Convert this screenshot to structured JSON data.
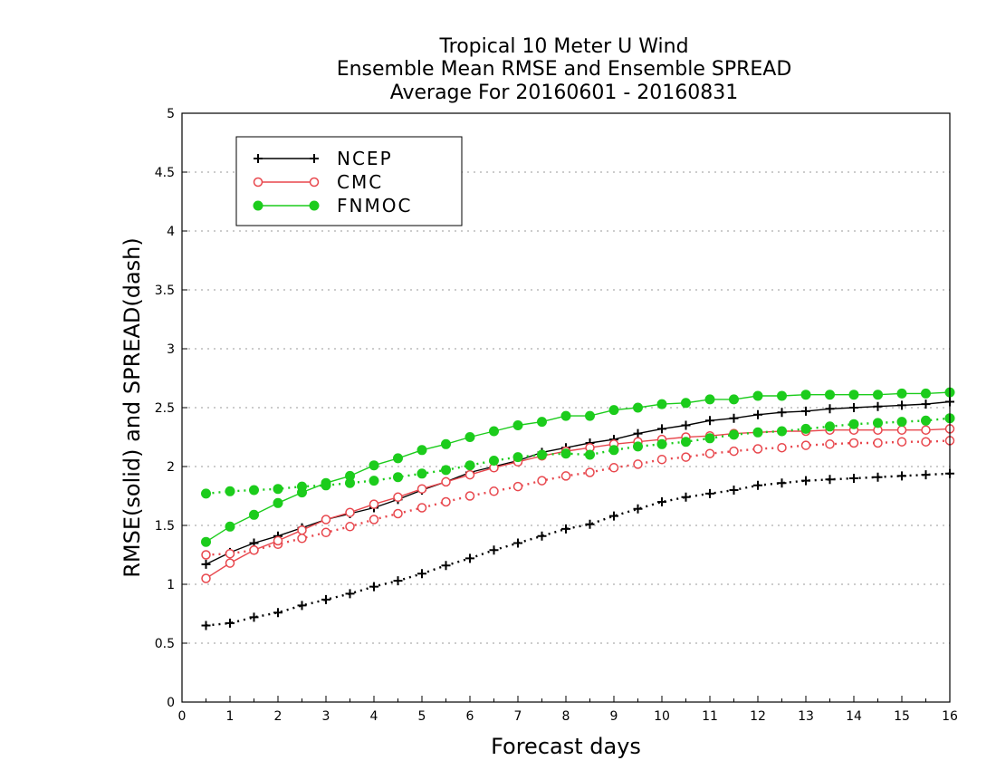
{
  "chart_data": {
    "type": "line",
    "title": [
      "Tropical 10 Meter U Wind",
      "Ensemble Mean RMSE and Ensemble SPREAD",
      "Average For 20160601 - 20160831"
    ],
    "xlabel": "Forecast days",
    "ylabel": "RMSE(solid) and SPREAD(dash)",
    "xlim": [
      0,
      16
    ],
    "ylim": [
      0,
      5
    ],
    "x_ticks": [
      "0",
      "1",
      "2",
      "3",
      "4",
      "5",
      "6",
      "7",
      "8",
      "9",
      "10",
      "11",
      "12",
      "13",
      "14",
      "15",
      "16"
    ],
    "y_ticks": [
      "0",
      "0.5",
      "1",
      "1.5",
      "2",
      "2.5",
      "3",
      "3.5",
      "4",
      "4.5",
      "5"
    ],
    "grid": "horizontal dotted",
    "legend_position": "top-left",
    "x": [
      0.5,
      1,
      1.5,
      2,
      2.5,
      3,
      3.5,
      4,
      4.5,
      5,
      5.5,
      6,
      6.5,
      7,
      7.5,
      8,
      8.5,
      9,
      9.5,
      10,
      10.5,
      11,
      11.5,
      12,
      12.5,
      13,
      13.5,
      14,
      14.5,
      15,
      15.5,
      16
    ],
    "series": [
      {
        "name": "NCEP",
        "color": "#000000",
        "marker": "plus",
        "rmse": [
          1.17,
          1.27,
          1.35,
          1.41,
          1.48,
          1.55,
          1.6,
          1.65,
          1.72,
          1.8,
          1.87,
          1.95,
          2.0,
          2.05,
          2.12,
          2.16,
          2.2,
          2.23,
          2.28,
          2.32,
          2.35,
          2.39,
          2.41,
          2.44,
          2.46,
          2.47,
          2.49,
          2.5,
          2.51,
          2.52,
          2.53,
          2.55
        ],
        "spread": [
          0.65,
          0.67,
          0.72,
          0.76,
          0.82,
          0.87,
          0.92,
          0.98,
          1.03,
          1.09,
          1.16,
          1.22,
          1.29,
          1.35,
          1.41,
          1.47,
          1.51,
          1.58,
          1.64,
          1.7,
          1.74,
          1.77,
          1.8,
          1.84,
          1.86,
          1.88,
          1.89,
          1.9,
          1.91,
          1.92,
          1.93,
          1.94
        ]
      },
      {
        "name": "CMC",
        "color": "#e8474d",
        "marker": "circle",
        "rmse": [
          1.05,
          1.18,
          1.29,
          1.37,
          1.46,
          1.55,
          1.61,
          1.68,
          1.74,
          1.81,
          1.87,
          1.93,
          1.99,
          2.04,
          2.09,
          2.13,
          2.16,
          2.19,
          2.21,
          2.23,
          2.25,
          2.26,
          2.28,
          2.29,
          2.3,
          2.3,
          2.31,
          2.31,
          2.31,
          2.31,
          2.31,
          2.32
        ],
        "spread": [
          1.25,
          1.26,
          1.29,
          1.34,
          1.39,
          1.44,
          1.49,
          1.55,
          1.6,
          1.65,
          1.7,
          1.75,
          1.79,
          1.83,
          1.88,
          1.92,
          1.95,
          1.99,
          2.02,
          2.06,
          2.08,
          2.11,
          2.13,
          2.15,
          2.16,
          2.18,
          2.19,
          2.2,
          2.2,
          2.21,
          2.21,
          2.22
        ]
      },
      {
        "name": "FNMOC",
        "color": "#1ccc1c",
        "marker": "dot",
        "rmse": [
          1.36,
          1.49,
          1.59,
          1.69,
          1.78,
          1.86,
          1.92,
          2.01,
          2.07,
          2.14,
          2.19,
          2.25,
          2.3,
          2.35,
          2.38,
          2.43,
          2.43,
          2.48,
          2.5,
          2.53,
          2.54,
          2.57,
          2.57,
          2.6,
          2.6,
          2.61,
          2.61,
          2.61,
          2.61,
          2.62,
          2.62,
          2.63
        ],
        "spread": [
          1.77,
          1.79,
          1.8,
          1.81,
          1.83,
          1.84,
          1.86,
          1.88,
          1.91,
          1.94,
          1.97,
          2.01,
          2.05,
          2.08,
          2.1,
          2.11,
          2.1,
          2.14,
          2.17,
          2.19,
          2.21,
          2.24,
          2.27,
          2.29,
          2.3,
          2.32,
          2.34,
          2.36,
          2.37,
          2.38,
          2.39,
          2.41
        ]
      }
    ]
  }
}
